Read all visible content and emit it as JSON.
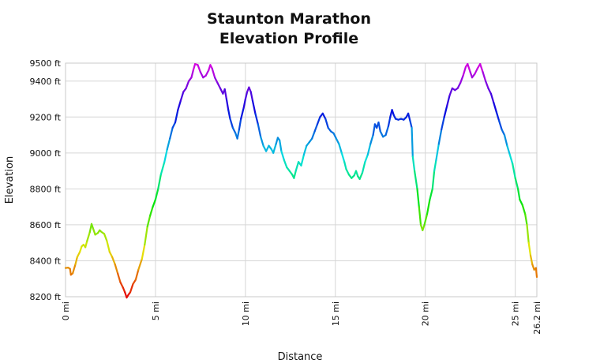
{
  "chart_data": {
    "type": "line",
    "title_lines": [
      "Staunton Marathon",
      "Elevation Profile"
    ],
    "xlabel": "Distance",
    "ylabel": "Elevation",
    "xlim": [
      0,
      26.2
    ],
    "ylim": [
      8200,
      9500
    ],
    "x_ticks": [
      {
        "value": 0,
        "label": "0 mi"
      },
      {
        "value": 5,
        "label": "5 mi"
      },
      {
        "value": 10,
        "label": "10 mi"
      },
      {
        "value": 15,
        "label": "15 mi"
      },
      {
        "value": 20,
        "label": "20 mi"
      },
      {
        "value": 25,
        "label": "25 mi"
      },
      {
        "value": 26.2,
        "label": "26.2 mi"
      }
    ],
    "y_ticks": [
      {
        "value": 8200,
        "label": "8200 ft"
      },
      {
        "value": 8400,
        "label": "8400 ft"
      },
      {
        "value": 8600,
        "label": "8600 ft"
      },
      {
        "value": 8800,
        "label": "8800 ft"
      },
      {
        "value": 9000,
        "label": "9000 ft"
      },
      {
        "value": 9200,
        "label": "9200 ft"
      },
      {
        "value": 9400,
        "label": "9400 ft"
      },
      {
        "value": 9500,
        "label": "9500 ft"
      }
    ],
    "grid": true,
    "line_coloring": "by elevation: red (low) → orange → yellow → green → cyan → blue → violet (high)",
    "points": [
      [
        0.0,
        8360
      ],
      [
        0.15,
        8362
      ],
      [
        0.25,
        8355
      ],
      [
        0.3,
        8322
      ],
      [
        0.4,
        8330
      ],
      [
        0.55,
        8380
      ],
      [
        0.65,
        8420
      ],
      [
        0.8,
        8450
      ],
      [
        0.9,
        8480
      ],
      [
        1.0,
        8490
      ],
      [
        1.1,
        8475
      ],
      [
        1.2,
        8510
      ],
      [
        1.35,
        8560
      ],
      [
        1.45,
        8605
      ],
      [
        1.55,
        8575
      ],
      [
        1.65,
        8545
      ],
      [
        1.8,
        8555
      ],
      [
        1.9,
        8570
      ],
      [
        2.0,
        8560
      ],
      [
        2.15,
        8550
      ],
      [
        2.3,
        8510
      ],
      [
        2.45,
        8450
      ],
      [
        2.6,
        8420
      ],
      [
        2.75,
        8380
      ],
      [
        2.9,
        8330
      ],
      [
        3.05,
        8280
      ],
      [
        3.2,
        8250
      ],
      [
        3.3,
        8225
      ],
      [
        3.4,
        8195
      ],
      [
        3.5,
        8212
      ],
      [
        3.6,
        8225
      ],
      [
        3.75,
        8270
      ],
      [
        3.9,
        8295
      ],
      [
        4.05,
        8350
      ],
      [
        4.25,
        8410
      ],
      [
        4.4,
        8490
      ],
      [
        4.55,
        8590
      ],
      [
        4.7,
        8650
      ],
      [
        4.85,
        8700
      ],
      [
        5.0,
        8740
      ],
      [
        5.15,
        8800
      ],
      [
        5.3,
        8880
      ],
      [
        5.5,
        8950
      ],
      [
        5.65,
        9020
      ],
      [
        5.8,
        9080
      ],
      [
        5.95,
        9140
      ],
      [
        6.1,
        9170
      ],
      [
        6.25,
        9240
      ],
      [
        6.4,
        9290
      ],
      [
        6.55,
        9340
      ],
      [
        6.7,
        9360
      ],
      [
        6.85,
        9400
      ],
      [
        7.0,
        9420
      ],
      [
        7.1,
        9460
      ],
      [
        7.2,
        9495
      ],
      [
        7.35,
        9490
      ],
      [
        7.5,
        9450
      ],
      [
        7.65,
        9420
      ],
      [
        7.8,
        9430
      ],
      [
        7.95,
        9460
      ],
      [
        8.05,
        9490
      ],
      [
        8.15,
        9470
      ],
      [
        8.3,
        9420
      ],
      [
        8.45,
        9390
      ],
      [
        8.6,
        9360
      ],
      [
        8.75,
        9330
      ],
      [
        8.85,
        9355
      ],
      [
        8.95,
        9300
      ],
      [
        9.05,
        9240
      ],
      [
        9.15,
        9190
      ],
      [
        9.3,
        9140
      ],
      [
        9.45,
        9110
      ],
      [
        9.55,
        9080
      ],
      [
        9.65,
        9130
      ],
      [
        9.75,
        9190
      ],
      [
        9.9,
        9250
      ],
      [
        10.0,
        9300
      ],
      [
        10.1,
        9340
      ],
      [
        10.2,
        9365
      ],
      [
        10.3,
        9340
      ],
      [
        10.4,
        9290
      ],
      [
        10.55,
        9220
      ],
      [
        10.7,
        9160
      ],
      [
        10.85,
        9090
      ],
      [
        11.0,
        9040
      ],
      [
        11.15,
        9010
      ],
      [
        11.3,
        9040
      ],
      [
        11.45,
        9020
      ],
      [
        11.55,
        9000
      ],
      [
        11.7,
        9050
      ],
      [
        11.8,
        9085
      ],
      [
        11.9,
        9070
      ],
      [
        12.0,
        9010
      ],
      [
        12.15,
        8960
      ],
      [
        12.3,
        8920
      ],
      [
        12.45,
        8900
      ],
      [
        12.6,
        8880
      ],
      [
        12.7,
        8860
      ],
      [
        12.8,
        8900
      ],
      [
        12.95,
        8950
      ],
      [
        13.1,
        8930
      ],
      [
        13.25,
        8990
      ],
      [
        13.4,
        9040
      ],
      [
        13.55,
        9060
      ],
      [
        13.7,
        9080
      ],
      [
        13.85,
        9120
      ],
      [
        14.0,
        9160
      ],
      [
        14.15,
        9200
      ],
      [
        14.3,
        9220
      ],
      [
        14.45,
        9190
      ],
      [
        14.6,
        9140
      ],
      [
        14.75,
        9120
      ],
      [
        14.9,
        9110
      ],
      [
        15.05,
        9080
      ],
      [
        15.2,
        9050
      ],
      [
        15.35,
        9000
      ],
      [
        15.5,
        8950
      ],
      [
        15.6,
        8910
      ],
      [
        15.75,
        8880
      ],
      [
        15.9,
        8860
      ],
      [
        16.05,
        8875
      ],
      [
        16.15,
        8900
      ],
      [
        16.25,
        8870
      ],
      [
        16.35,
        8855
      ],
      [
        16.5,
        8890
      ],
      [
        16.65,
        8950
      ],
      [
        16.8,
        8990
      ],
      [
        16.95,
        9050
      ],
      [
        17.1,
        9100
      ],
      [
        17.2,
        9160
      ],
      [
        17.3,
        9140
      ],
      [
        17.4,
        9170
      ],
      [
        17.5,
        9120
      ],
      [
        17.65,
        9090
      ],
      [
        17.8,
        9100
      ],
      [
        17.95,
        9150
      ],
      [
        18.05,
        9200
      ],
      [
        18.15,
        9240
      ],
      [
        18.25,
        9210
      ],
      [
        18.35,
        9190
      ],
      [
        18.5,
        9185
      ],
      [
        18.65,
        9190
      ],
      [
        18.8,
        9185
      ],
      [
        18.95,
        9200
      ],
      [
        19.05,
        9220
      ],
      [
        19.15,
        9180
      ],
      [
        19.25,
        9140
      ],
      [
        19.3,
        8980
      ],
      [
        19.4,
        8900
      ],
      [
        19.55,
        8800
      ],
      [
        19.65,
        8700
      ],
      [
        19.75,
        8600
      ],
      [
        19.85,
        8570
      ],
      [
        19.95,
        8600
      ],
      [
        20.1,
        8660
      ],
      [
        20.25,
        8740
      ],
      [
        20.4,
        8800
      ],
      [
        20.5,
        8900
      ],
      [
        20.6,
        8960
      ],
      [
        20.75,
        9050
      ],
      [
        20.9,
        9130
      ],
      [
        21.05,
        9200
      ],
      [
        21.2,
        9260
      ],
      [
        21.35,
        9320
      ],
      [
        21.5,
        9360
      ],
      [
        21.65,
        9350
      ],
      [
        21.8,
        9360
      ],
      [
        21.95,
        9390
      ],
      [
        22.1,
        9430
      ],
      [
        22.25,
        9480
      ],
      [
        22.35,
        9495
      ],
      [
        22.5,
        9450
      ],
      [
        22.6,
        9420
      ],
      [
        22.75,
        9440
      ],
      [
        22.9,
        9470
      ],
      [
        23.05,
        9495
      ],
      [
        23.2,
        9450
      ],
      [
        23.35,
        9400
      ],
      [
        23.5,
        9360
      ],
      [
        23.65,
        9330
      ],
      [
        23.8,
        9280
      ],
      [
        23.95,
        9230
      ],
      [
        24.1,
        9180
      ],
      [
        24.25,
        9130
      ],
      [
        24.4,
        9100
      ],
      [
        24.55,
        9040
      ],
      [
        24.7,
        8990
      ],
      [
        24.85,
        8940
      ],
      [
        25.0,
        8860
      ],
      [
        25.15,
        8800
      ],
      [
        25.25,
        8740
      ],
      [
        25.4,
        8710
      ],
      [
        25.55,
        8660
      ],
      [
        25.65,
        8600
      ],
      [
        25.75,
        8500
      ],
      [
        25.85,
        8430
      ],
      [
        25.95,
        8380
      ],
      [
        26.05,
        8350
      ],
      [
        26.15,
        8360
      ],
      [
        26.2,
        8310
      ]
    ]
  }
}
